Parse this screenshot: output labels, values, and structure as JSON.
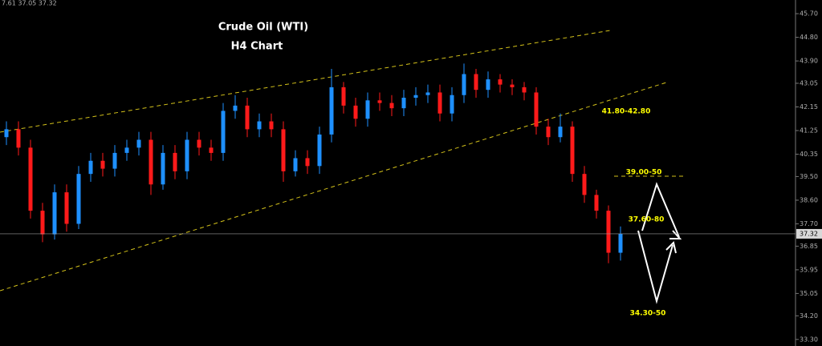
{
  "chart_data": {
    "type": "candlestick",
    "header": "7.61 37.05 37.32",
    "title": "Crude Oil (WTI)",
    "subtitle": "H4 Chart",
    "annotations": [
      "41.80-42.80",
      "39.00-50",
      "37.60-80",
      "34.30-50"
    ],
    "up_color": "#1e90ff",
    "down_color": "#ff1a1a",
    "last_price": 37.32,
    "ylim": [
      33.05,
      46.22
    ],
    "yticks": [
      {
        "value": 45.7,
        "label": "45.70"
      },
      {
        "value": 44.8,
        "label": "44.80"
      },
      {
        "value": 43.9,
        "label": "43.90"
      },
      43.05,
      42.15,
      41.25,
      40.35,
      {
        "value": 39.5,
        "label": "39.50"
      },
      {
        "value": 38.6,
        "label": "38.60"
      },
      {
        "value": 37.7,
        "label": "37.70"
      },
      36.85,
      35.95,
      35.05,
      {
        "value": 34.2,
        "label": "34.20"
      },
      {
        "value": 33.3,
        "label": "33.30"
      }
    ],
    "open": [
      41.0,
      41.3,
      40.6,
      38.2,
      37.3,
      38.9,
      37.7,
      39.6,
      40.1,
      39.8,
      40.4,
      40.6,
      40.9,
      39.2,
      40.4,
      39.7,
      40.9,
      40.6,
      40.4,
      42.0,
      42.2,
      41.3,
      41.6,
      41.3,
      39.7,
      40.2,
      39.9,
      41.1,
      42.9,
      42.2,
      41.7,
      42.4,
      42.3,
      42.1,
      42.5,
      42.6,
      42.7,
      41.9,
      42.6,
      43.4,
      42.8,
      43.2,
      43.0,
      42.9,
      42.7,
      41.4,
      41.0,
      41.4,
      39.6,
      38.8,
      38.2,
      36.6
    ],
    "high": [
      41.6,
      41.6,
      40.9,
      38.5,
      39.2,
      39.2,
      39.9,
      40.4,
      40.4,
      40.7,
      40.9,
      41.2,
      41.2,
      40.7,
      40.7,
      41.2,
      41.2,
      40.9,
      42.3,
      42.6,
      42.5,
      41.9,
      41.9,
      41.6,
      40.5,
      40.5,
      41.4,
      43.6,
      43.1,
      42.5,
      42.7,
      42.7,
      42.6,
      42.8,
      42.9,
      43.0,
      43.0,
      42.9,
      43.8,
      43.6,
      43.5,
      43.4,
      43.2,
      43.1,
      42.9,
      41.7,
      41.9,
      41.6,
      39.9,
      39.0,
      38.4,
      37.6
    ],
    "low": [
      40.7,
      40.3,
      37.9,
      37.0,
      37.1,
      37.4,
      37.5,
      39.3,
      39.5,
      39.5,
      40.1,
      40.3,
      38.8,
      39.0,
      39.4,
      39.4,
      40.3,
      40.1,
      40.1,
      41.7,
      41.0,
      41.0,
      41.0,
      39.3,
      39.5,
      39.6,
      39.6,
      40.8,
      41.9,
      41.4,
      41.4,
      42.0,
      41.8,
      41.8,
      42.2,
      42.3,
      41.6,
      41.6,
      42.3,
      42.5,
      42.5,
      42.7,
      42.6,
      42.4,
      41.1,
      40.7,
      40.8,
      39.3,
      38.5,
      37.9,
      36.2,
      36.3
    ],
    "close": [
      41.3,
      40.6,
      38.2,
      37.3,
      38.9,
      37.7,
      39.6,
      40.1,
      39.8,
      40.4,
      40.6,
      40.9,
      39.2,
      40.4,
      39.7,
      40.9,
      40.6,
      40.4,
      42.0,
      42.2,
      41.3,
      41.6,
      41.3,
      39.7,
      40.2,
      39.9,
      41.1,
      42.9,
      42.2,
      41.7,
      42.4,
      42.3,
      42.1,
      42.5,
      42.6,
      42.7,
      41.9,
      42.6,
      43.4,
      42.8,
      43.2,
      43.0,
      42.9,
      42.7,
      41.4,
      41.0,
      41.4,
      39.6,
      38.8,
      38.2,
      36.6,
      37.32
    ]
  }
}
